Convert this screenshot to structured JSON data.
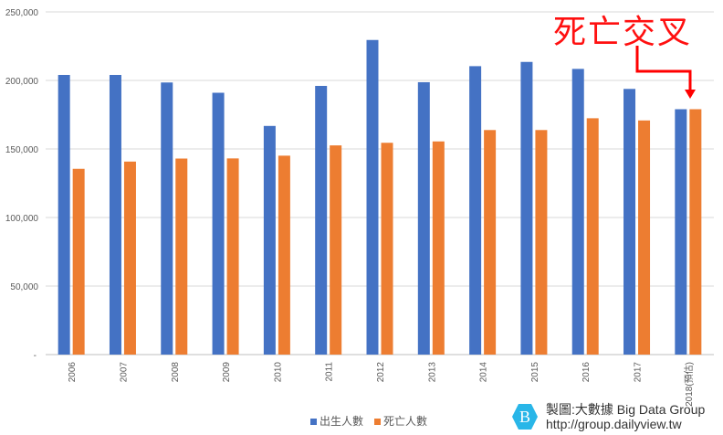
{
  "chart_data": {
    "type": "bar",
    "categories": [
      "2006",
      "2007",
      "2008",
      "2009",
      "2010",
      "2011",
      "2012",
      "2013",
      "2014",
      "2015",
      "2016",
      "2017",
      "2018(預估)"
    ],
    "series": [
      {
        "name": "出生人數",
        "color": "#4472C4",
        "values": [
          204000,
          204000,
          198500,
          191000,
          166800,
          196000,
          229500,
          198700,
          210400,
          213500,
          208400,
          193800,
          179000
        ]
      },
      {
        "name": "死亡人數",
        "color": "#ED7D31",
        "values": [
          135500,
          140800,
          143000,
          143100,
          145100,
          152600,
          154500,
          155500,
          163800,
          163800,
          172400,
          170800,
          179000
        ]
      }
    ],
    "ylim": [
      0,
      250000
    ],
    "yticks": [
      "-",
      "50,000",
      "100,000",
      "150,000",
      "200,000",
      "250,000"
    ],
    "grid": true,
    "legend": "bottom",
    "annotation": "死亡交叉",
    "annotation_color": "#FF0000"
  },
  "credit": {
    "line1": "製圖:大數據 Big Data Group",
    "line2": "http://group.dailyview.tw",
    "logo_letter": "B",
    "logo_color": "#29B6E8"
  }
}
